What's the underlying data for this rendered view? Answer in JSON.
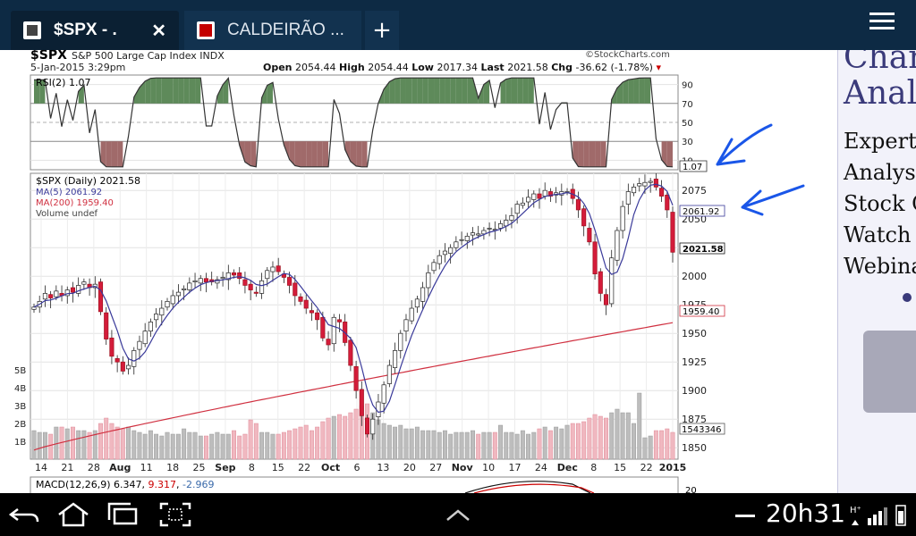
{
  "browser": {
    "tabs": [
      {
        "title": "$SPX - .",
        "active": true
      },
      {
        "title": "CALDEIRÃO ...",
        "active": false
      }
    ],
    "new_tab_label": "+",
    "close_label": "✕"
  },
  "chart": {
    "symbol_title": "$SPX",
    "description": "S&P 500 Large Cap Index INDX",
    "date": "5-Jan-2015 3:29pm",
    "source": "©StockCharts.com",
    "quote": {
      "open_label": "Open",
      "open": "2054.44",
      "high_label": "High",
      "high": "2054.44",
      "low_label": "Low",
      "low": "2017.34",
      "last_label": "Last",
      "last": "2021.58",
      "chg_label": "Chg",
      "chg": "-36.62 (-1.78%)"
    },
    "rsi_legend": "RSI(2) 1.07",
    "rsi_value_tag": "1.07",
    "price_legend": "$SPX (Daily) 2021.58",
    "ma5_legend": "MA(5) 2061.92",
    "ma200_legend": "MA(200) 1959.40",
    "volume_legend": "Volume undef",
    "ma5_tag": "2061.92",
    "last_tag": "2021.58",
    "ma200_tag": "1959.40",
    "volume_tag": "1543346",
    "macd_legend_name": "MACD(12,26,9)",
    "macd_val1": "6.347",
    "macd_val2": "9.317",
    "macd_val3": "-2.969",
    "macd_axis_label": "20"
  },
  "chart_data": {
    "type": "candlestick",
    "rsi_axis": [
      "90",
      "70",
      "50",
      "30",
      "10"
    ],
    "price_axis": [
      "2075",
      "2050",
      "2025",
      "2000",
      "1975",
      "1950",
      "1925",
      "1900",
      "1875",
      "1850"
    ],
    "volume_axis": [
      "5B",
      "4B",
      "3B",
      "2B",
      "1B"
    ],
    "x_ticks": [
      "14",
      "21",
      "28",
      "Aug",
      "11",
      "18",
      "25",
      "Sep",
      "8",
      "15",
      "22",
      "Oct",
      "6",
      "13",
      "20",
      "27",
      "Nov",
      "10",
      "17",
      "24",
      "Dec",
      "8",
      "15",
      "22",
      "2015"
    ],
    "price_close": [
      1973,
      1978,
      1985,
      1981,
      1987,
      1983,
      1988,
      1986,
      1992,
      1995,
      1990,
      1993,
      1969,
      1945,
      1930,
      1925,
      1917,
      1922,
      1935,
      1943,
      1952,
      1960,
      1967,
      1972,
      1978,
      1983,
      1986,
      1989,
      1994,
      1996,
      1998,
      1995,
      1995,
      1997,
      1999,
      2003,
      2001,
      1998,
      1992,
      1988,
      1985,
      1996,
      2005,
      2008,
      2004,
      1999,
      1992,
      1983,
      1978,
      1972,
      1968,
      1962,
      1946,
      1940,
      1964,
      1960,
      1942,
      1922,
      1900,
      1878,
      1862,
      1875,
      1890,
      1905,
      1922,
      1935,
      1950,
      1962,
      1972,
      1980,
      1990,
      2003,
      2012,
      2018,
      2022,
      2025,
      2030,
      2032,
      2035,
      2038,
      2037,
      2040,
      2042,
      2041,
      2046,
      2049,
      2053,
      2063,
      2064,
      2069,
      2072,
      2068,
      2075,
      2070,
      2073,
      2074,
      2074,
      2068,
      2058,
      2044,
      2030,
      2002,
      1985,
      1975,
      2016,
      2040,
      2061,
      2074,
      2078,
      2081,
      2082,
      2083,
      2078,
      2070,
      2058,
      2021
    ],
    "volume_billions": [
      1.6,
      1.5,
      1.5,
      1.4,
      1.8,
      1.8,
      1.7,
      1.8,
      1.6,
      1.6,
      1.5,
      1.6,
      2.0,
      2.3,
      2.0,
      1.8,
      1.7,
      1.8,
      1.6,
      1.5,
      1.4,
      1.6,
      1.4,
      1.3,
      1.5,
      1.4,
      1.4,
      1.7,
      1.5,
      1.5,
      1.3,
      1.3,
      1.4,
      1.5,
      1.4,
      1.4,
      1.6,
      1.3,
      1.4,
      2.2,
      2.0,
      1.5,
      1.5,
      1.4,
      1.4,
      1.5,
      1.6,
      1.7,
      1.8,
      1.9,
      1.6,
      1.8,
      2.1,
      2.3,
      2.4,
      2.5,
      2.4,
      2.6,
      2.8,
      3.0,
      3.1,
      2.6,
      2.2,
      2.0,
      1.9,
      1.8,
      1.9,
      1.7,
      1.7,
      1.8,
      1.6,
      1.6,
      1.6,
      1.5,
      1.6,
      1.4,
      1.5,
      1.5,
      1.5,
      1.6,
      1.4,
      1.5,
      1.5,
      1.5,
      1.9,
      1.5,
      1.5,
      1.4,
      1.6,
      1.4,
      1.5,
      1.7,
      1.8,
      1.6,
      1.8,
      1.7,
      1.9,
      2.0,
      2.0,
      2.1,
      2.3,
      2.5,
      2.4,
      2.3,
      2.6,
      2.8,
      2.6,
      2.6,
      2.0,
      3.7,
      1.2,
      1.3,
      1.6,
      1.6,
      1.7,
      1.5
    ],
    "ma200_start": 1848,
    "ma200_end": 1959.4,
    "price_ylim": [
      1840,
      2090
    ],
    "rsi_ylim": [
      0,
      100
    ],
    "volume_ylim": [
      0,
      5.5
    ],
    "grid": true
  },
  "system": {
    "clock": "20h31"
  }
}
